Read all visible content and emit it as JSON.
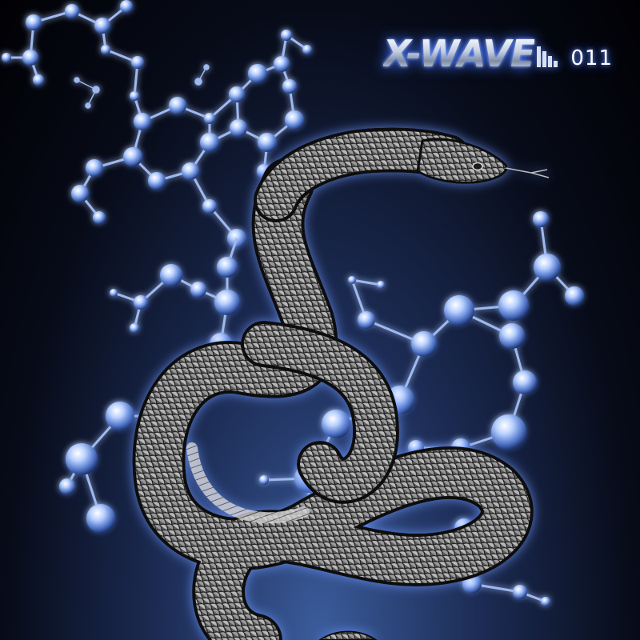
{
  "cover": {
    "brand": "X-WAVE",
    "issue": "011",
    "subjects": [
      "snake-illustration",
      "molecule-structures"
    ]
  },
  "colors": {
    "background": "#05070f",
    "glow": "#3d6fff",
    "atom": "#a9c6ff",
    "snake_scale": "#8e8e8e"
  }
}
